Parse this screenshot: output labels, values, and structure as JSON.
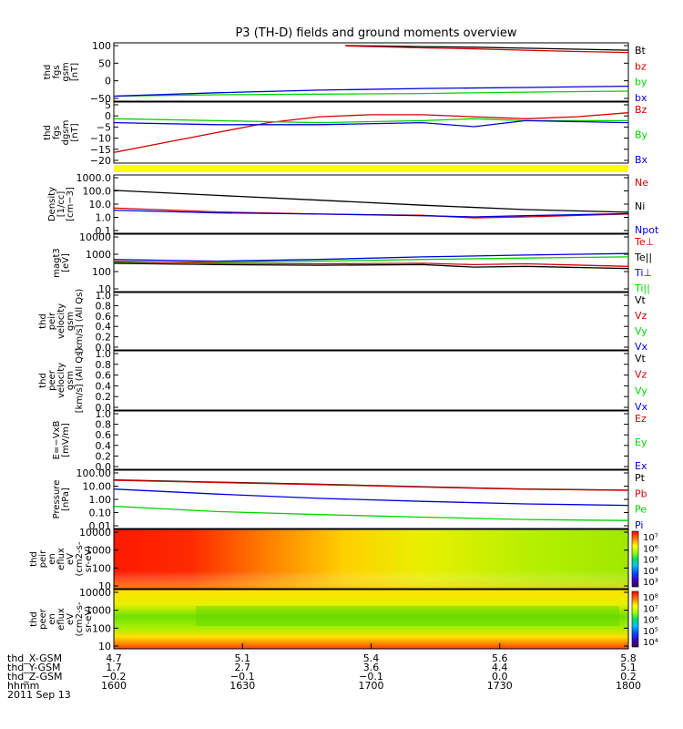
{
  "title": "P3 (TH-D) fields and ground moments overview",
  "colors": {
    "black": "#000000",
    "red": "#d40000",
    "green": "#00d400",
    "blue": "#0000e0",
    "yellow": "#ffff00"
  },
  "chart_data": [
    {
      "id": "fgs-btot",
      "type": "line",
      "ylabel": [
        "thd",
        "fgs",
        "gsm",
        "[nT]"
      ],
      "yticks": [
        "100",
        "50",
        "0",
        "−50"
      ],
      "ylim": [
        -55,
        105
      ],
      "legend": [
        {
          "name": "Bt",
          "color": "#000000"
        },
        {
          "name": "bz",
          "color": "#d40000"
        },
        {
          "name": "by",
          "color": "#00d400"
        },
        {
          "name": "bx",
          "color": "#0000e0"
        }
      ],
      "series": [
        {
          "name": "Bt",
          "color": "#000000",
          "x": [
            0.45,
            0.5,
            0.6,
            0.7,
            0.8,
            0.9,
            1.0
          ],
          "y": [
            105,
            104,
            102,
            100,
            97,
            94,
            91
          ]
        },
        {
          "name": "bz",
          "color": "#d40000",
          "x": [
            0.45,
            0.5,
            0.6,
            0.7,
            0.8,
            0.9,
            1.0
          ],
          "y": [
            104,
            102,
            98,
            95,
            91,
            87,
            84
          ]
        },
        {
          "name": "by",
          "color": "#00d400",
          "x": [
            0.0,
            0.2,
            0.4,
            0.6,
            0.8,
            1.0
          ],
          "y": [
            -48,
            -44,
            -42,
            -40,
            -36,
            -33
          ]
        },
        {
          "name": "bx",
          "color": "#0000e0",
          "x": [
            0.0,
            0.2,
            0.4,
            0.6,
            0.8,
            1.0
          ],
          "y": [
            -48,
            -38,
            -30,
            -25,
            -22,
            -18
          ]
        }
      ]
    },
    {
      "id": "fgs-dgsm",
      "type": "line",
      "ylabel": [
        "thd",
        "fgs",
        "dgsm",
        "[nT]"
      ],
      "yticks": [
        "5",
        "0",
        "−5",
        "−10",
        "−15",
        "−20"
      ],
      "ylim": [
        -22,
        6
      ],
      "legend": [
        {
          "name": "Bz",
          "color": "#d40000"
        },
        {
          "name": "By",
          "color": "#00d400"
        },
        {
          "name": "Bx",
          "color": "#0000e0"
        }
      ],
      "series": [
        {
          "name": "Bz",
          "color": "#d40000",
          "x": [
            0.0,
            0.1,
            0.2,
            0.3,
            0.4,
            0.5,
            0.6,
            0.7,
            0.8,
            0.9,
            1.0
          ],
          "y": [
            -18,
            -13,
            -8,
            -3,
            0,
            1,
            1,
            0,
            -1,
            0,
            2
          ]
        },
        {
          "name": "By",
          "color": "#00d400",
          "x": [
            0.0,
            0.2,
            0.4,
            0.6,
            0.7,
            0.8,
            1.0
          ],
          "y": [
            -1,
            -2,
            -3,
            -2,
            -1,
            -2,
            -2
          ]
        },
        {
          "name": "Bx",
          "color": "#0000e0",
          "x": [
            0.0,
            0.2,
            0.4,
            0.6,
            0.7,
            0.8,
            1.0
          ],
          "y": [
            -3,
            -4,
            -4,
            -3,
            -5,
            -2,
            -3
          ]
        }
      ]
    },
    {
      "id": "density",
      "type": "line",
      "scale": "log",
      "ylabel": [
        "Density",
        "[1/cc]",
        "[cm−3]"
      ],
      "yticks": [
        "1000.0",
        "100.0",
        "10.0",
        "1.0",
        "0.1"
      ],
      "ylim": [
        0.1,
        1500
      ],
      "legend": [
        {
          "name": "Ne",
          "color": "#d40000"
        },
        {
          "name": "Ni",
          "color": "#000000"
        },
        {
          "name": "Npot",
          "color": "#0000e0"
        }
      ],
      "series": [
        {
          "name": "Ni",
          "color": "#000000",
          "x": [
            0.0,
            0.2,
            0.4,
            0.6,
            0.8,
            1.0
          ],
          "y": [
            150,
            60,
            25,
            10,
            4.5,
            2.8
          ]
        },
        {
          "name": "Ne",
          "color": "#d40000",
          "x": [
            0.0,
            0.2,
            0.4,
            0.6,
            0.7,
            0.8,
            1.0
          ],
          "y": [
            6,
            3,
            2,
            1.6,
            1.0,
            1.2,
            2.0
          ]
        },
        {
          "name": "Npot",
          "color": "#0000e0",
          "x": [
            0.0,
            0.2,
            0.4,
            0.6,
            0.7,
            0.8,
            1.0
          ],
          "y": [
            4,
            2.5,
            2,
            1.5,
            1.2,
            1.5,
            2.2
          ]
        }
      ]
    },
    {
      "id": "temperature",
      "type": "line",
      "scale": "log",
      "ylabel": [
        "magt3",
        "[eV]"
      ],
      "yticks": [
        "10000",
        "1000",
        "100",
        "10"
      ],
      "ylim": [
        10,
        10000
      ],
      "legend": [
        {
          "name": "Te⊥",
          "color": "#d40000"
        },
        {
          "name": "Te||",
          "color": "#000000"
        },
        {
          "name": "Ti⊥",
          "color": "#0000e0"
        },
        {
          "name": "Ti||",
          "color": "#00d400"
        }
      ],
      "series": [
        {
          "name": "Ti⊥",
          "color": "#0000e0",
          "x": [
            0.0,
            0.2,
            0.4,
            0.6,
            0.8,
            1.0
          ],
          "y": [
            500,
            400,
            500,
            700,
            900,
            1100
          ]
        },
        {
          "name": "Ti||",
          "color": "#00d400",
          "x": [
            0.0,
            0.2,
            0.4,
            0.6,
            0.8,
            1.0
          ],
          "y": [
            350,
            350,
            400,
            500,
            600,
            700
          ]
        },
        {
          "name": "Te⊥",
          "color": "#d40000",
          "x": [
            0.0,
            0.2,
            0.4,
            0.6,
            0.7,
            0.8,
            1.0
          ],
          "y": [
            400,
            300,
            280,
            300,
            250,
            280,
            200
          ]
        },
        {
          "name": "Te||",
          "color": "#000000",
          "x": [
            0.0,
            0.2,
            0.4,
            0.6,
            0.7,
            0.8,
            1.0
          ],
          "y": [
            300,
            250,
            230,
            250,
            180,
            200,
            150
          ]
        }
      ]
    },
    {
      "id": "peir-velocity",
      "type": "line",
      "ylabel": [
        "thd",
        "peir",
        "velocity",
        "gsm",
        "[km/s] (All Qs)"
      ],
      "yticks": [
        "1.0",
        "0.8",
        "0.6",
        "0.4",
        "0.2",
        "0.0"
      ],
      "ylim": [
        0,
        1
      ],
      "legend": [
        {
          "name": "Vt",
          "color": "#000000"
        },
        {
          "name": "Vz",
          "color": "#d40000"
        },
        {
          "name": "Vy",
          "color": "#00d400"
        },
        {
          "name": "Vx",
          "color": "#0000e0"
        }
      ],
      "series": []
    },
    {
      "id": "peer-velocity",
      "type": "line",
      "ylabel": [
        "thd",
        "peer",
        "velocity",
        "gsm",
        "[km/s] (All Qs)"
      ],
      "yticks": [
        "1.0",
        "0.8",
        "0.6",
        "0.4",
        "0.2",
        "0.0"
      ],
      "ylim": [
        0,
        1
      ],
      "legend": [
        {
          "name": "Vt",
          "color": "#000000"
        },
        {
          "name": "Vz",
          "color": "#d40000"
        },
        {
          "name": "Vy",
          "color": "#00d400"
        },
        {
          "name": "Vx",
          "color": "#0000e0"
        }
      ],
      "series": []
    },
    {
      "id": "efield",
      "type": "line",
      "ylabel": [
        "E=−VxB",
        "[mV/m]"
      ],
      "yticks": [
        "1.0",
        "0.8",
        "0.6",
        "0.4",
        "0.2",
        "0.0"
      ],
      "ylim": [
        0,
        1
      ],
      "legend": [
        {
          "name": "Ez",
          "color": "#d40000"
        },
        {
          "name": "Ey",
          "color": "#00d400"
        },
        {
          "name": "Ex",
          "color": "#0000e0"
        }
      ],
      "series": []
    },
    {
      "id": "pressure",
      "type": "line",
      "scale": "log",
      "ylabel": [
        "Pressure",
        "[nPa]"
      ],
      "yticks": [
        "100.00",
        "10.00",
        "1.00",
        "0.10",
        "0.01"
      ],
      "ylim": [
        0.01,
        100
      ],
      "legend": [
        {
          "name": "Pt",
          "color": "#000000"
        },
        {
          "name": "Pb",
          "color": "#d40000"
        },
        {
          "name": "Pe",
          "color": "#00d400"
        },
        {
          "name": "Pi",
          "color": "#0000e0"
        }
      ],
      "series": [
        {
          "name": "Pt",
          "color": "#000000",
          "x": [
            0.0,
            0.2,
            0.4,
            0.6,
            0.8,
            1.0
          ],
          "y": [
            30,
            20,
            14,
            9,
            6,
            5
          ]
        },
        {
          "name": "Pb",
          "color": "#d40000",
          "x": [
            0.0,
            0.2,
            0.4,
            0.6,
            0.8,
            1.0
          ],
          "y": [
            28,
            19,
            13,
            8.5,
            5.8,
            4.8
          ]
        },
        {
          "name": "Pi",
          "color": "#0000e0",
          "x": [
            0.0,
            0.2,
            0.4,
            0.6,
            0.8,
            1.0
          ],
          "y": [
            6,
            2.5,
            1.2,
            0.7,
            0.45,
            0.35
          ]
        },
        {
          "name": "Pe",
          "color": "#00d400",
          "x": [
            0.0,
            0.2,
            0.4,
            0.6,
            0.8,
            1.0
          ],
          "y": [
            0.3,
            0.12,
            0.07,
            0.045,
            0.03,
            0.025
          ]
        }
      ]
    },
    {
      "id": "peir-spectrogram",
      "type": "heatmap",
      "ylabel": [
        "thd",
        "peir",
        "en",
        "eflux",
        "eV",
        "(cm2-s-",
        "sr-eV)"
      ],
      "yticks": [
        "10000",
        "1000",
        "100",
        "10"
      ],
      "colorbar_ticks": [
        "10⁷",
        "10⁶",
        "10⁵",
        "10⁴",
        "10³"
      ]
    },
    {
      "id": "peer-spectrogram",
      "type": "heatmap",
      "ylabel": [
        "thd",
        "peer",
        "en",
        "eflux",
        "eV",
        "(cm2-s-",
        "sr-eV)"
      ],
      "yticks": [
        "10000",
        "1000",
        "100",
        "10"
      ],
      "colorbar_ticks": [
        "10⁸",
        "10⁷",
        "10⁶",
        "10⁵",
        "10⁴"
      ]
    }
  ],
  "x_axis": {
    "row_labels": [
      "thd_X-GSM",
      "thd_Y-GSM",
      "thd_Z-GSM",
      "hhmm",
      "2011 Sep 13"
    ],
    "columns": [
      [
        "4.7",
        "1.7",
        "−0.2",
        "1600"
      ],
      [
        "5.1",
        "2.7",
        "−0.1",
        "1630"
      ],
      [
        "5.4",
        "3.6",
        "−0.1",
        "1700"
      ],
      [
        "5.6",
        "4.4",
        "0.0",
        "1730"
      ],
      [
        "5.8",
        "5.1",
        "0.2",
        "1800"
      ]
    ]
  }
}
